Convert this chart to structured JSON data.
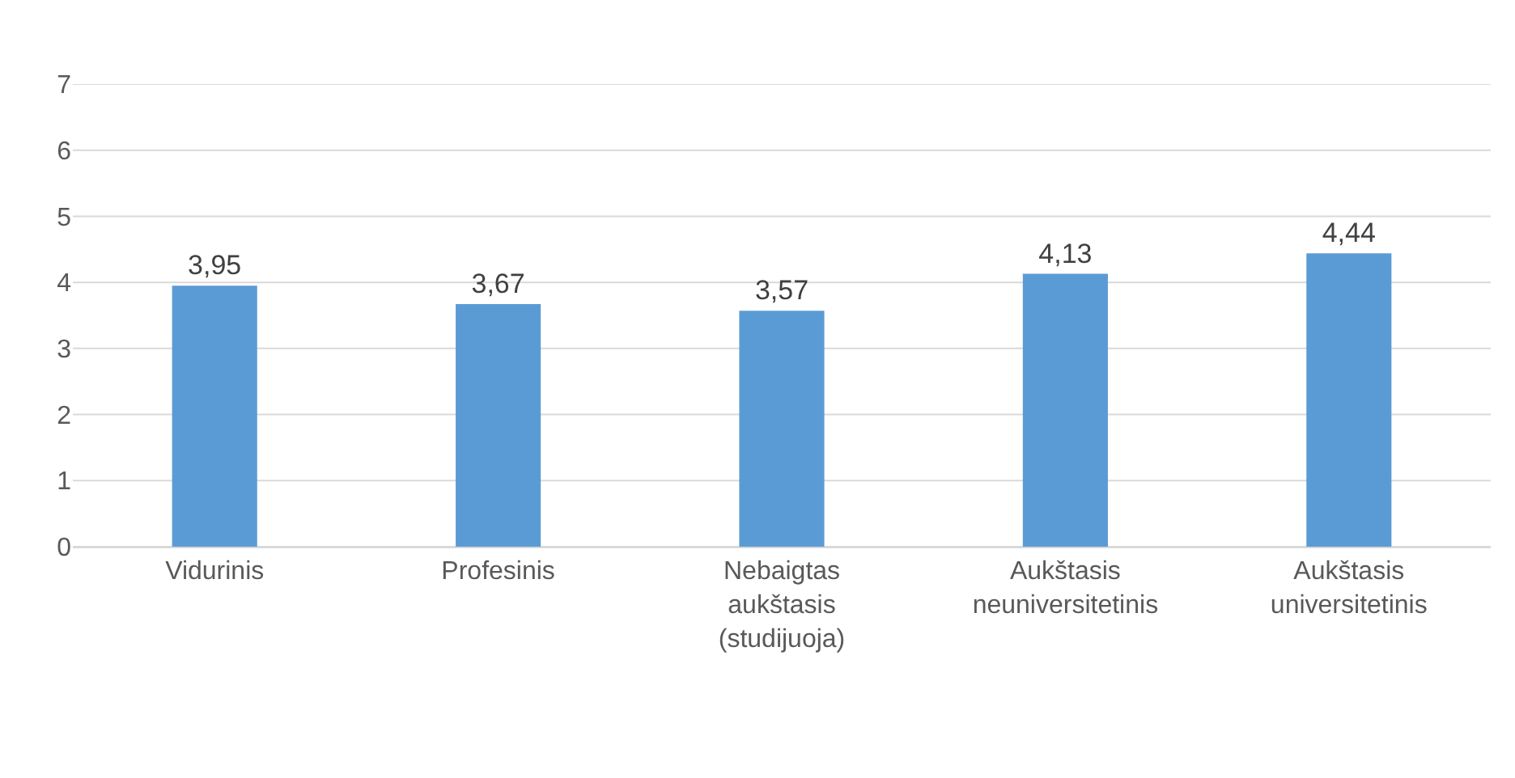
{
  "chart_data": {
    "type": "bar",
    "categories": [
      "Vidurinis",
      "Profesinis",
      "Nebaigtas aukštasis (studijuoja)",
      "Aukštasis neuniversitetinis",
      "Aukštasis universitetinis"
    ],
    "values": [
      3.95,
      3.67,
      3.57,
      4.13,
      4.44
    ],
    "value_labels": [
      "3,95",
      "3,67",
      "3,57",
      "4,13",
      "4,44"
    ],
    "color": "#5b9bd5",
    "ylim": [
      0,
      7
    ],
    "yticks": [
      0,
      1,
      2,
      3,
      4,
      5,
      6,
      7
    ],
    "grid": "y"
  }
}
